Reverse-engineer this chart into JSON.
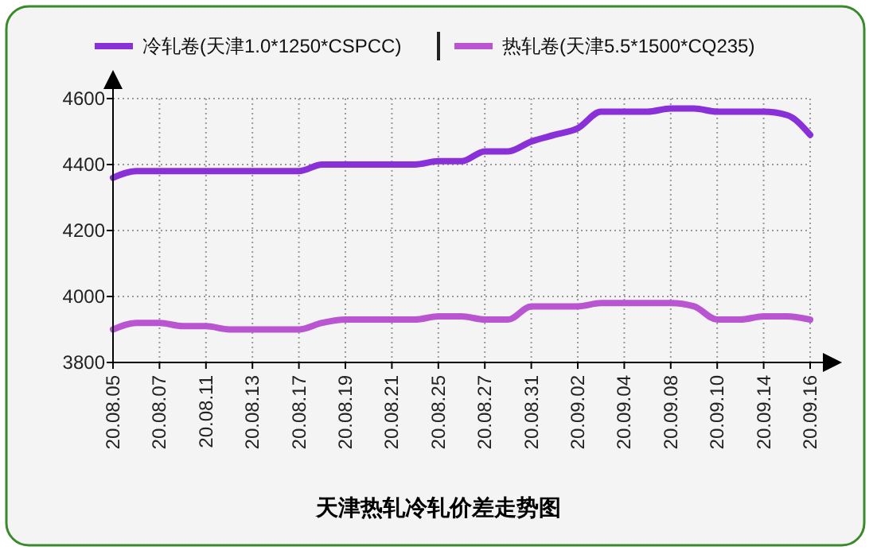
{
  "chart_data": {
    "type": "line",
    "title": "天津热轧冷轧价差走势图",
    "categories": [
      "20.08.05",
      null,
      "20.08.07",
      null,
      "20.08.11",
      null,
      "20.08.13",
      null,
      "20.08.17",
      null,
      "20.08.19",
      null,
      "20.08.21",
      null,
      "20.08.25",
      null,
      "20.08.27",
      null,
      "20.08.31",
      null,
      "20.09.02",
      null,
      "20.09.04",
      null,
      "20.09.08",
      null,
      "20.09.10",
      null,
      "20.09.14",
      null,
      "20.09.16"
    ],
    "series": [
      {
        "name": "冷轧卷(天津1.0*1250*CSPCC)",
        "color": "#8a30d8",
        "values": [
          4360,
          4380,
          4380,
          4380,
          4380,
          4380,
          4380,
          4380,
          4380,
          4400,
          4400,
          4400,
          4400,
          4400,
          4410,
          4410,
          4440,
          4440,
          4470,
          4490,
          4510,
          4560,
          4560,
          4560,
          4570,
          4570,
          4560,
          4560,
          4560,
          4550,
          4490
        ]
      },
      {
        "name": "热轧卷(天津5.5*1500*CQ235)",
        "color": "#b955d0",
        "values": [
          3900,
          3920,
          3920,
          3910,
          3910,
          3900,
          3900,
          3900,
          3900,
          3920,
          3930,
          3930,
          3930,
          3930,
          3940,
          3940,
          3930,
          3930,
          3970,
          3970,
          3970,
          3980,
          3980,
          3980,
          3980,
          3970,
          3930,
          3930,
          3940,
          3940,
          3930
        ]
      }
    ],
    "ylim": [
      3800,
      4600
    ],
    "yticks": [
      3800,
      4000,
      4200,
      4400,
      4600
    ],
    "grid": true,
    "legend": "top",
    "marker": "none",
    "line_style": "solid"
  }
}
